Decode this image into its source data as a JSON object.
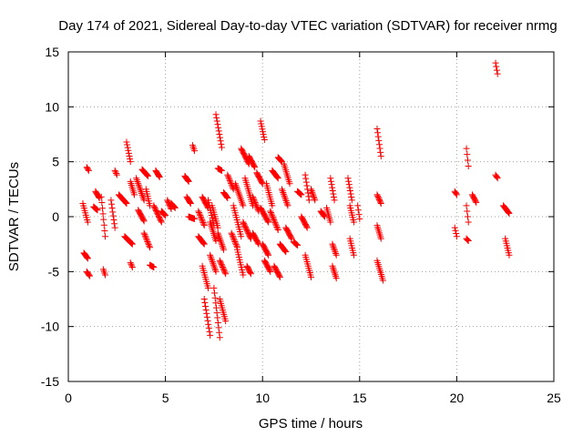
{
  "chart_data": {
    "type": "scatter",
    "title": "Day 174 of 2021, Sidereal Day-to-day VTEC variation (SDTVAR) for receiver nrmg",
    "xlabel": "GPS time / hours",
    "ylabel": "SDTVAR / TECUs",
    "xlim": [
      0,
      25
    ],
    "ylim": [
      -15,
      15
    ],
    "xticks": [
      0,
      5,
      10,
      15,
      20,
      25
    ],
    "yticks": [
      -15,
      -10,
      -5,
      0,
      5,
      10,
      15
    ],
    "xtick_labels": [
      "0",
      "5",
      "10",
      "15",
      "20",
      "25"
    ],
    "ytick_labels": [
      "-15",
      "-10",
      "-5",
      "0",
      "5",
      "10",
      "15"
    ],
    "grid": true,
    "marker": "+",
    "color": "#ff0000",
    "series": [
      {
        "name": "SDTVAR",
        "tracks": [
          {
            "x0": 0.75,
            "x1": 1.0,
            "y0": 1.2,
            "y1": -0.5
          },
          {
            "x0": 0.8,
            "x1": 1.0,
            "y0": -3.3,
            "y1": -3.8
          },
          {
            "x0": 0.95,
            "x1": 1.05,
            "y0": 4.5,
            "y1": 4.2
          },
          {
            "x0": 0.95,
            "x1": 1.1,
            "y0": -5.0,
            "y1": -5.4
          },
          {
            "x0": 1.3,
            "x1": 1.5,
            "y0": 0.9,
            "y1": 0.6
          },
          {
            "x0": 1.4,
            "x1": 1.6,
            "y0": 2.3,
            "y1": 1.7
          },
          {
            "x0": 1.7,
            "x1": 1.9,
            "y0": 1.8,
            "y1": -1.8
          },
          {
            "x0": 1.8,
            "x1": 1.9,
            "y0": -4.8,
            "y1": -5.3
          },
          {
            "x0": 2.2,
            "x1": 2.4,
            "y0": 1.5,
            "y1": -1.0
          },
          {
            "x0": 2.4,
            "x1": 2.5,
            "y0": 4.2,
            "y1": 3.8
          },
          {
            "x0": 2.6,
            "x1": 3.0,
            "y0": 2.0,
            "y1": 1.2
          },
          {
            "x0": 2.9,
            "x1": 3.3,
            "y0": -1.8,
            "y1": -2.5
          },
          {
            "x0": 3.0,
            "x1": 3.2,
            "y0": 6.8,
            "y1": 5.0
          },
          {
            "x0": 3.2,
            "x1": 3.4,
            "y0": 3.2,
            "y1": 2.0
          },
          {
            "x0": 3.2,
            "x1": 3.3,
            "y0": -4.2,
            "y1": -4.6
          },
          {
            "x0": 3.5,
            "x1": 3.9,
            "y0": 3.5,
            "y1": 1.5
          },
          {
            "x0": 3.6,
            "x1": 3.9,
            "y0": 0.6,
            "y1": -0.4
          },
          {
            "x0": 3.8,
            "x1": 4.1,
            "y0": 4.3,
            "y1": 3.7
          },
          {
            "x0": 3.9,
            "x1": 4.2,
            "y0": -1.5,
            "y1": -2.8
          },
          {
            "x0": 4.0,
            "x1": 4.2,
            "y0": 2.5,
            "y1": 1.0
          },
          {
            "x0": 4.2,
            "x1": 4.4,
            "y0": -4.4,
            "y1": -4.6
          },
          {
            "x0": 4.4,
            "x1": 4.8,
            "y0": 1.0,
            "y1": -0.5
          },
          {
            "x0": 4.5,
            "x1": 4.7,
            "y0": 4.2,
            "y1": 3.6
          },
          {
            "x0": 4.8,
            "x1": 5.0,
            "y0": 0.5,
            "y1": 0.1
          },
          {
            "x0": 5.1,
            "x1": 5.3,
            "y0": 1.5,
            "y1": 0.7
          },
          {
            "x0": 5.3,
            "x1": 5.5,
            "y0": 1.2,
            "y1": 0.8
          },
          {
            "x0": 6.0,
            "x1": 6.2,
            "y0": 3.7,
            "y1": 3.2
          },
          {
            "x0": 6.1,
            "x1": 6.3,
            "y0": 1.8,
            "y1": 1.2
          },
          {
            "x0": 6.2,
            "x1": 6.5,
            "y0": 0.0,
            "y1": -0.2
          },
          {
            "x0": 6.4,
            "x1": 6.5,
            "y0": 6.5,
            "y1": 6.0
          },
          {
            "x0": 6.7,
            "x1": 7.0,
            "y0": 0.5,
            "y1": -0.8
          },
          {
            "x0": 6.7,
            "x1": 7.0,
            "y0": -1.8,
            "y1": -2.5
          },
          {
            "x0": 6.9,
            "x1": 7.2,
            "y0": 1.8,
            "y1": 0.8
          },
          {
            "x0": 6.9,
            "x1": 7.2,
            "y0": -4.5,
            "y1": -6.5
          },
          {
            "x0": 7.0,
            "x1": 7.3,
            "y0": -7.5,
            "y1": -10.8
          },
          {
            "x0": 7.2,
            "x1": 7.5,
            "y0": 1.5,
            "y1": -0.8
          },
          {
            "x0": 7.3,
            "x1": 7.6,
            "y0": -0.5,
            "y1": -2.2
          },
          {
            "x0": 7.3,
            "x1": 7.6,
            "y0": -3.5,
            "y1": -5.0
          },
          {
            "x0": 7.4,
            "x1": 7.7,
            "y0": 1.0,
            "y1": -1.0
          },
          {
            "x0": 7.5,
            "x1": 7.8,
            "y0": -6.5,
            "y1": -11.0
          },
          {
            "x0": 7.6,
            "x1": 7.9,
            "y0": 9.3,
            "y1": 6.3
          },
          {
            "x0": 7.7,
            "x1": 7.9,
            "y0": 4.4,
            "y1": 4.2
          },
          {
            "x0": 7.7,
            "x1": 8.0,
            "y0": -1.5,
            "y1": -3.0
          },
          {
            "x0": 7.8,
            "x1": 8.1,
            "y0": -4.0,
            "y1": -5.2
          },
          {
            "x0": 7.8,
            "x1": 8.1,
            "y0": -7.5,
            "y1": -9.5
          },
          {
            "x0": 8.0,
            "x1": 8.2,
            "y0": 2.2,
            "y1": 1.7
          },
          {
            "x0": 8.2,
            "x1": 8.5,
            "y0": 3.8,
            "y1": 2.5
          },
          {
            "x0": 8.4,
            "x1": 8.7,
            "y0": -1.5,
            "y1": -2.8
          },
          {
            "x0": 8.5,
            "x1": 8.9,
            "y0": 1.0,
            "y1": -1.8
          },
          {
            "x0": 8.6,
            "x1": 9.0,
            "y0": 3.0,
            "y1": 1.0
          },
          {
            "x0": 8.7,
            "x1": 9.0,
            "y0": -3.0,
            "y1": -5.3
          },
          {
            "x0": 8.9,
            "x1": 9.3,
            "y0": 6.2,
            "y1": 4.8
          },
          {
            "x0": 9.0,
            "x1": 9.4,
            "y0": -0.5,
            "y1": -2.0
          },
          {
            "x0": 9.1,
            "x1": 9.5,
            "y0": 3.5,
            "y1": 1.0
          },
          {
            "x0": 9.3,
            "x1": 9.6,
            "y0": 5.5,
            "y1": 4.5
          },
          {
            "x0": 9.2,
            "x1": 9.4,
            "y0": -4.5,
            "y1": -5.2
          },
          {
            "x0": 9.5,
            "x1": 9.8,
            "y0": 1.8,
            "y1": 0.5
          },
          {
            "x0": 9.5,
            "x1": 9.8,
            "y0": -1.5,
            "y1": -2.5
          },
          {
            "x0": 9.7,
            "x1": 10.0,
            "y0": 4.0,
            "y1": 3.0
          },
          {
            "x0": 9.9,
            "x1": 10.3,
            "y0": 0.8,
            "y1": -0.5
          },
          {
            "x0": 9.9,
            "x1": 10.1,
            "y0": 8.7,
            "y1": 7.0
          },
          {
            "x0": 10.0,
            "x1": 10.3,
            "y0": -2.5,
            "y1": -3.5
          },
          {
            "x0": 10.1,
            "x1": 10.4,
            "y0": -4.0,
            "y1": -5.0
          },
          {
            "x0": 10.2,
            "x1": 10.5,
            "y0": 3.0,
            "y1": 1.0
          },
          {
            "x0": 10.4,
            "x1": 10.8,
            "y0": 0.5,
            "y1": -1.2
          },
          {
            "x0": 10.5,
            "x1": 10.8,
            "y0": 4.2,
            "y1": 3.5
          },
          {
            "x0": 10.6,
            "x1": 10.9,
            "y0": -4.5,
            "y1": -5.5
          },
          {
            "x0": 10.8,
            "x1": 11.0,
            "y0": 5.4,
            "y1": 5.0
          },
          {
            "x0": 10.9,
            "x1": 11.2,
            "y0": -2.5,
            "y1": -3.2
          },
          {
            "x0": 11.0,
            "x1": 11.3,
            "y0": 2.5,
            "y1": 1.0
          },
          {
            "x0": 11.1,
            "x1": 11.4,
            "y0": 4.8,
            "y1": 3.0
          },
          {
            "x0": 11.2,
            "x1": 11.5,
            "y0": -1.0,
            "y1": -2.0
          },
          {
            "x0": 11.6,
            "x1": 11.8,
            "y0": -2.3,
            "y1": -2.6
          },
          {
            "x0": 11.8,
            "x1": 12.0,
            "y0": 2.3,
            "y1": 2.0
          },
          {
            "x0": 12.0,
            "x1": 12.3,
            "y0": 0.0,
            "y1": -1.0
          },
          {
            "x0": 12.2,
            "x1": 12.4,
            "y0": 3.8,
            "y1": 1.5
          },
          {
            "x0": 12.2,
            "x1": 12.5,
            "y0": -3.5,
            "y1": -5.5
          },
          {
            "x0": 12.5,
            "x1": 12.7,
            "y0": 2.5,
            "y1": 1.5
          },
          {
            "x0": 13.0,
            "x1": 13.2,
            "y0": 0.5,
            "y1": 0.0
          },
          {
            "x0": 13.3,
            "x1": 13.5,
            "y0": 0.8,
            "y1": -0.5
          },
          {
            "x0": 13.5,
            "x1": 13.7,
            "y0": 3.5,
            "y1": 1.5
          },
          {
            "x0": 13.6,
            "x1": 13.8,
            "y0": -2.5,
            "y1": -3.5
          },
          {
            "x0": 13.6,
            "x1": 13.8,
            "y0": -4.5,
            "y1": -5.6
          },
          {
            "x0": 14.4,
            "x1": 14.6,
            "y0": 3.5,
            "y1": 1.5
          },
          {
            "x0": 14.5,
            "x1": 14.7,
            "y0": 1.0,
            "y1": -0.5
          },
          {
            "x0": 14.5,
            "x1": 14.7,
            "y0": -2.0,
            "y1": -3.5
          },
          {
            "x0": 14.9,
            "x1": 15.0,
            "y0": 1.0,
            "y1": -0.2
          },
          {
            "x0": 15.9,
            "x1": 16.1,
            "y0": 8.0,
            "y1": 5.5
          },
          {
            "x0": 15.9,
            "x1": 16.1,
            "y0": 2.0,
            "y1": 1.2
          },
          {
            "x0": 15.9,
            "x1": 16.1,
            "y0": -0.8,
            "y1": -2.0
          },
          {
            "x0": 15.9,
            "x1": 16.2,
            "y0": -4.0,
            "y1": -5.8
          },
          {
            "x0": 19.9,
            "x1": 20.0,
            "y0": 2.3,
            "y1": 2.0
          },
          {
            "x0": 19.9,
            "x1": 20.0,
            "y0": -1.0,
            "y1": -1.8
          },
          {
            "x0": 20.5,
            "x1": 20.6,
            "y0": 6.2,
            "y1": 4.6
          },
          {
            "x0": 20.5,
            "x1": 20.6,
            "y0": 1.0,
            "y1": -0.5
          },
          {
            "x0": 20.5,
            "x1": 20.6,
            "y0": -2.0,
            "y1": -2.2
          },
          {
            "x0": 20.8,
            "x1": 21.0,
            "y0": 2.0,
            "y1": 1.3
          },
          {
            "x0": 22.0,
            "x1": 22.1,
            "y0": 14.0,
            "y1": 13.0
          },
          {
            "x0": 22.0,
            "x1": 22.1,
            "y0": 3.8,
            "y1": 3.5
          },
          {
            "x0": 22.4,
            "x1": 22.7,
            "y0": 1.0,
            "y1": 0.3
          },
          {
            "x0": 22.5,
            "x1": 22.7,
            "y0": -2.0,
            "y1": -3.5
          }
        ]
      }
    ]
  }
}
